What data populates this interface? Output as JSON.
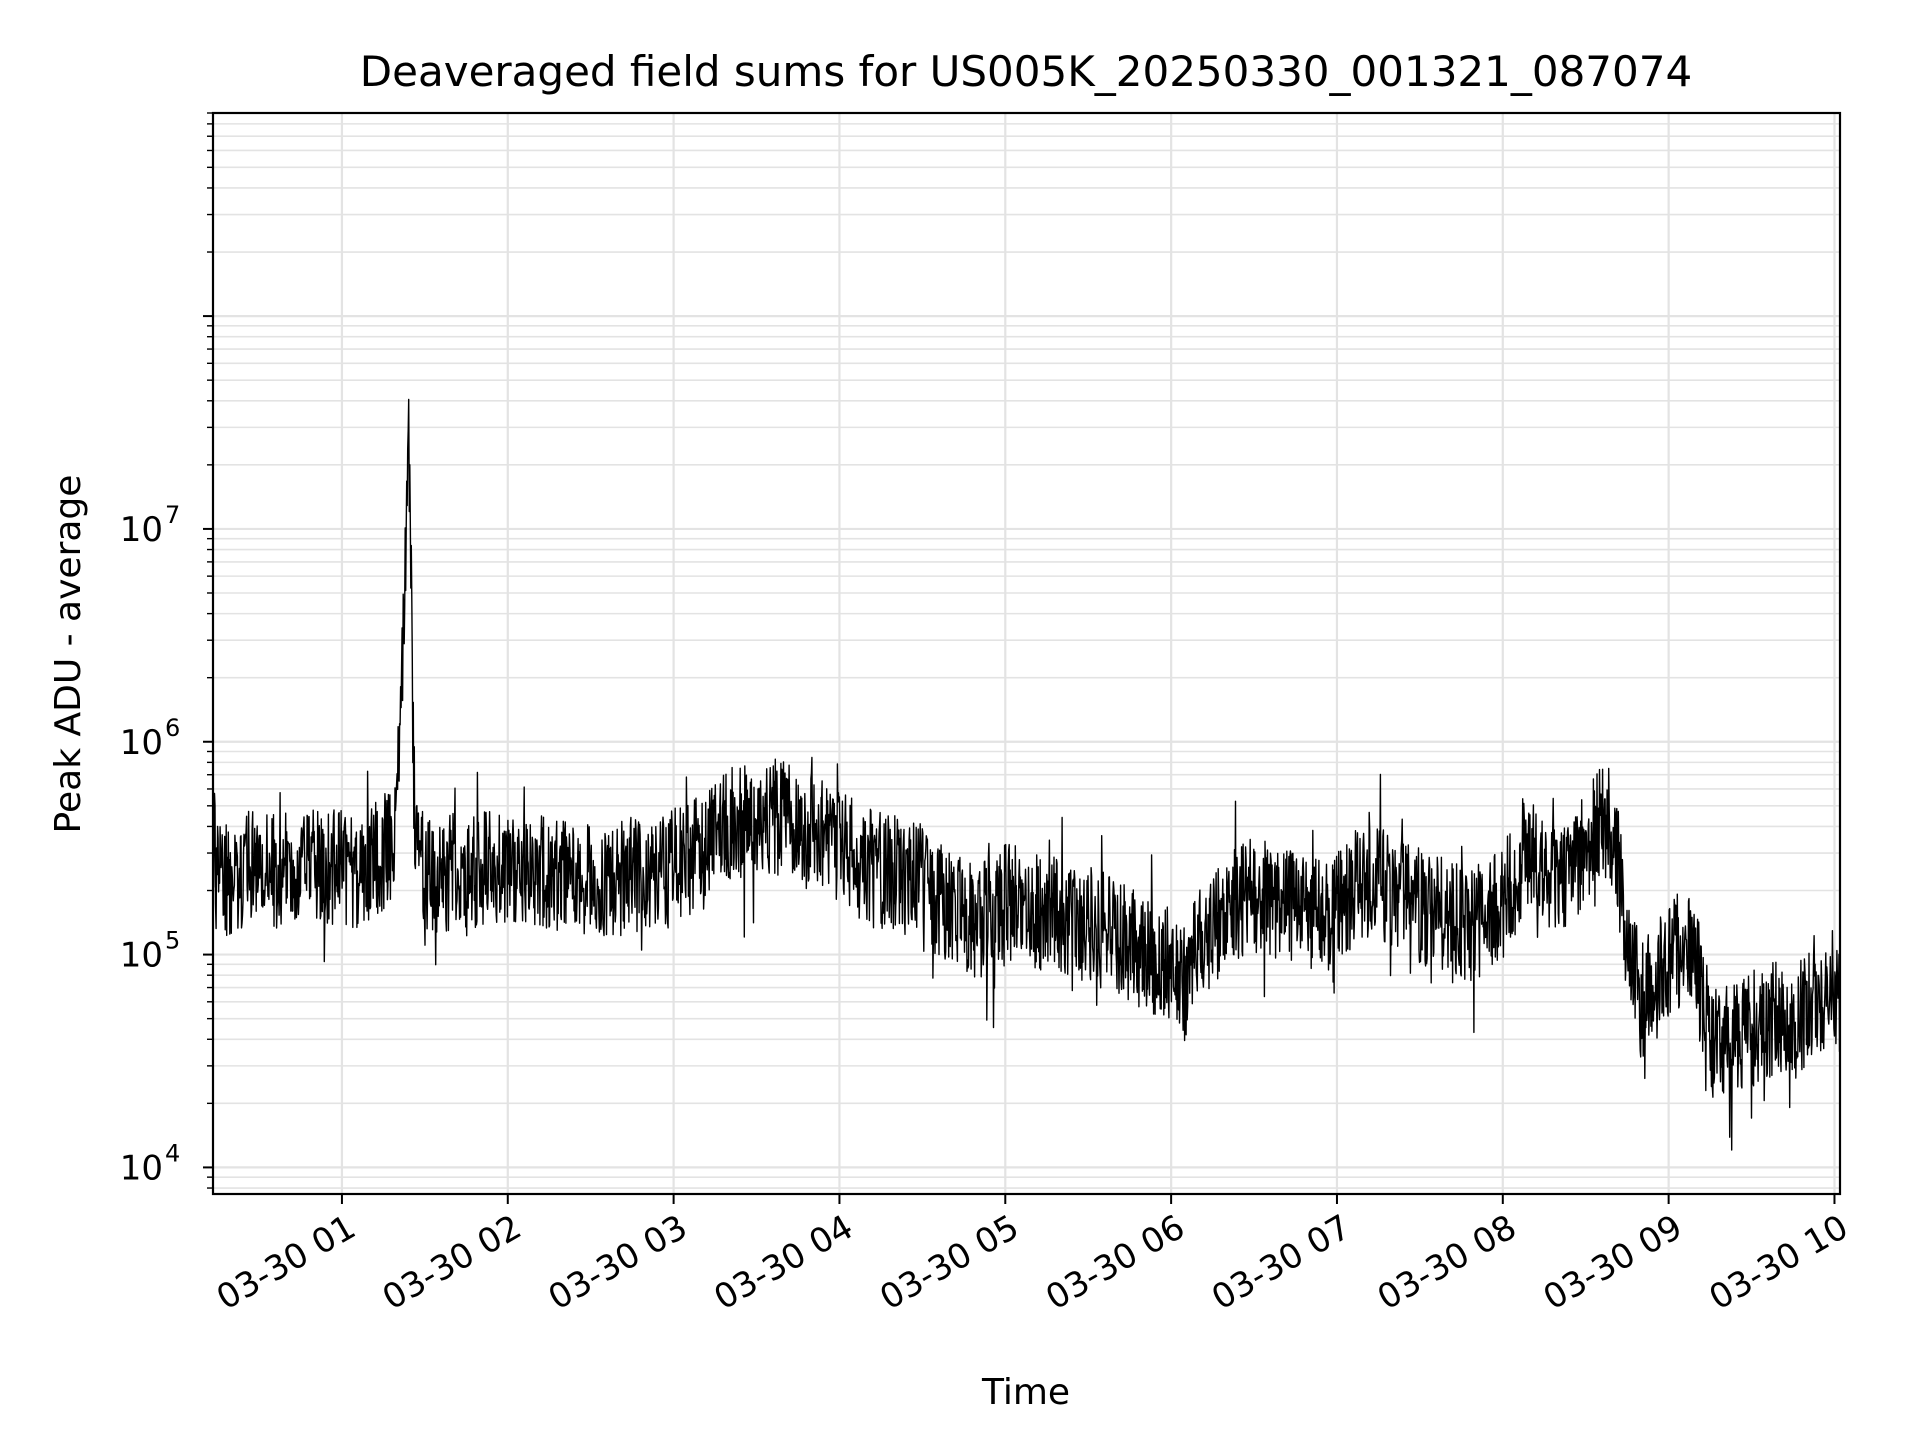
{
  "chart_data": {
    "type": "line",
    "title": "Deaveraged field sums for US005K_20250330_001321_087074",
    "xlabel": "Time",
    "ylabel": "Peak ADU - average",
    "yscale": "log",
    "ylim": [
      7500,
      900000000
    ],
    "xlim": [
      "2025-03-30T00:13:21",
      "2025-03-30T10:02:00"
    ],
    "grid": true,
    "legend": "none",
    "line_color": "#000000",
    "x_ticks": [
      {
        "time": "2025-03-30T01:00",
        "label": "03-30 01"
      },
      {
        "time": "2025-03-30T02:00",
        "label": "03-30 02"
      },
      {
        "time": "2025-03-30T03:00",
        "label": "03-30 03"
      },
      {
        "time": "2025-03-30T04:00",
        "label": "03-30 04"
      },
      {
        "time": "2025-03-30T05:00",
        "label": "03-30 05"
      },
      {
        "time": "2025-03-30T06:00",
        "label": "03-30 06"
      },
      {
        "time": "2025-03-30T07:00",
        "label": "03-30 07"
      },
      {
        "time": "2025-03-30T08:00",
        "label": "03-30 08"
      },
      {
        "time": "2025-03-30T09:00",
        "label": "03-30 09"
      },
      {
        "time": "2025-03-30T10:00",
        "label": "03-30 10"
      }
    ],
    "y_ticks": [
      {
        "value": 10000,
        "base": "10",
        "exp": "4"
      },
      {
        "value": 100000,
        "base": "10",
        "exp": "5"
      },
      {
        "value": 1000000,
        "base": "10",
        "exp": "6"
      },
      {
        "value": 10000000,
        "base": "10",
        "exp": "7"
      }
    ],
    "series": [
      {
        "time": [
          "2025-03-30T00:13:21",
          "2025-03-30T00:15",
          "2025-03-30T00:20",
          "2025-03-30T00:25",
          "2025-03-30T00:30",
          "2025-03-30T00:35",
          "2025-03-30T00:40",
          "2025-03-30T00:45",
          "2025-03-30T00:50",
          "2025-03-30T00:55",
          "2025-03-30T01:00",
          "2025-03-30T01:05",
          "2025-03-30T01:10",
          "2025-03-30T01:15",
          "2025-03-30T01:17",
          "2025-03-30T01:19",
          "2025-03-30T01:21",
          "2025-03-30T01:22",
          "2025-03-30T01:23",
          "2025-03-30T01:24",
          "2025-03-30T01:25",
          "2025-03-30T01:26",
          "2025-03-30T01:27",
          "2025-03-30T01:28",
          "2025-03-30T01:30",
          "2025-03-30T01:35",
          "2025-03-30T01:40",
          "2025-03-30T01:45",
          "2025-03-30T01:50",
          "2025-03-30T01:55",
          "2025-03-30T02:00",
          "2025-03-30T02:10",
          "2025-03-30T02:20",
          "2025-03-30T02:30",
          "2025-03-30T02:40",
          "2025-03-30T02:50",
          "2025-03-30T03:00",
          "2025-03-30T03:10",
          "2025-03-30T03:20",
          "2025-03-30T03:30",
          "2025-03-30T03:40",
          "2025-03-30T03:50",
          "2025-03-30T04:00",
          "2025-03-30T04:10",
          "2025-03-30T04:20",
          "2025-03-30T04:30",
          "2025-03-30T04:40",
          "2025-03-30T04:50",
          "2025-03-30T05:00",
          "2025-03-30T05:10",
          "2025-03-30T05:20",
          "2025-03-30T05:30",
          "2025-03-30T05:40",
          "2025-03-30T05:50",
          "2025-03-30T06:00",
          "2025-03-30T06:05",
          "2025-03-30T06:10",
          "2025-03-30T06:20",
          "2025-03-30T06:30",
          "2025-03-30T06:40",
          "2025-03-30T06:50",
          "2025-03-30T07:00",
          "2025-03-30T07:10",
          "2025-03-30T07:20",
          "2025-03-30T07:30",
          "2025-03-30T07:40",
          "2025-03-30T07:50",
          "2025-03-30T08:00",
          "2025-03-30T08:10",
          "2025-03-30T08:20",
          "2025-03-30T08:30",
          "2025-03-30T08:35",
          "2025-03-30T08:40",
          "2025-03-30T08:45",
          "2025-03-30T08:50",
          "2025-03-30T09:00",
          "2025-03-30T09:05",
          "2025-03-30T09:10",
          "2025-03-30T09:15",
          "2025-03-30T09:20",
          "2025-03-30T09:30",
          "2025-03-30T09:40",
          "2025-03-30T09:50",
          "2025-03-30T10:00",
          "2025-03-30T10:02"
        ],
        "base": [
          400000,
          250000,
          200000,
          260000,
          240000,
          250000,
          250000,
          240000,
          260000,
          250000,
          260000,
          250000,
          260000,
          300000,
          350000,
          400000,
          800000,
          3000000,
          8000000,
          40000000,
          7000000,
          600000,
          300000,
          260000,
          250000,
          230000,
          250000,
          220000,
          250000,
          260000,
          260000,
          250000,
          230000,
          220000,
          230000,
          240000,
          260000,
          300000,
          400000,
          450000,
          440000,
          380000,
          330000,
          260000,
          240000,
          220000,
          160000,
          140000,
          180000,
          160000,
          150000,
          140000,
          120000,
          100000,
          90000,
          70000,
          110000,
          160000,
          190000,
          170000,
          150000,
          160000,
          230000,
          200000,
          170000,
          150000,
          140000,
          180000,
          280000,
          240000,
          300000,
          450000,
          380000,
          120000,
          60000,
          90000,
          110000,
          90000,
          40000,
          40000,
          45000,
          50000,
          55000,
          70000,
          60000
        ]
      }
    ]
  }
}
